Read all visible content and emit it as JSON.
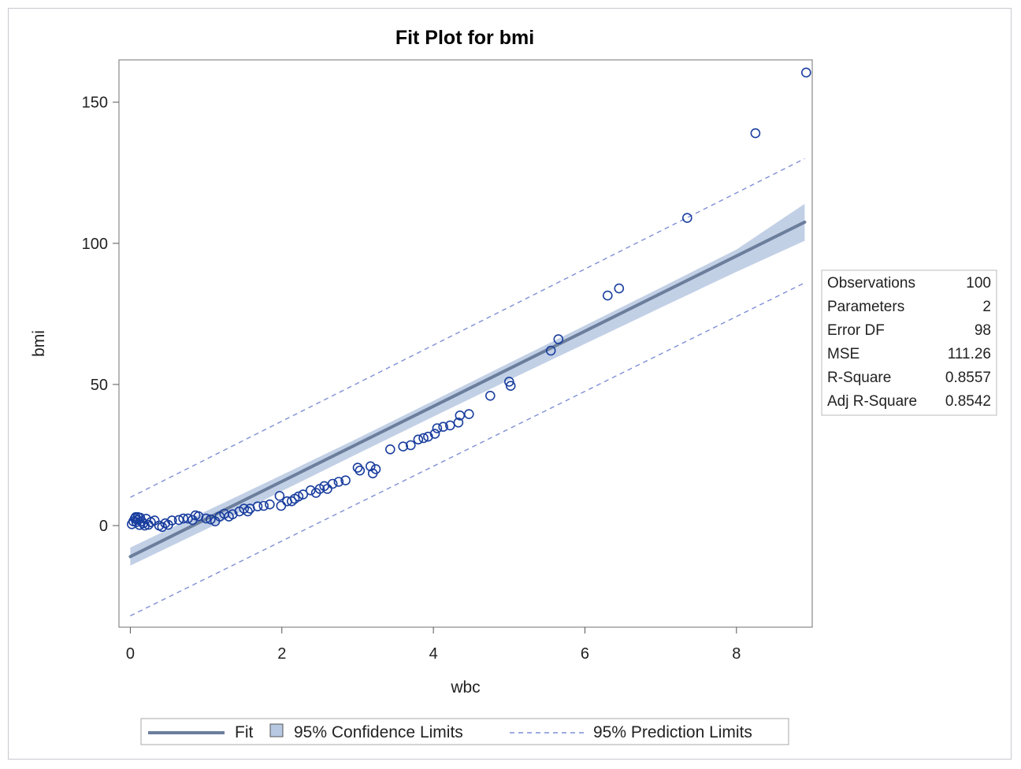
{
  "chart_data": {
    "type": "scatter",
    "title": "Fit Plot for bmi",
    "xlabel": "wbc",
    "ylabel": "bmi",
    "xlim": [
      -0.15,
      9.0
    ],
    "ylim": [
      -36,
      165
    ],
    "xticks": [
      0,
      2,
      4,
      6,
      8
    ],
    "yticks": [
      0,
      50,
      100,
      150
    ],
    "fit": {
      "x": [
        0,
        8.9
      ],
      "y": [
        -11,
        107.5
      ]
    },
    "confidence_limits": {
      "x": [
        0,
        1,
        2,
        3,
        4,
        5,
        6,
        7,
        8,
        8.9
      ],
      "lower": [
        -14.2,
        -1.3,
        12.2,
        25.5,
        38.6,
        51.6,
        64.4,
        77.2,
        89.9,
        100.9
      ],
      "upper": [
        -7.8,
        5.1,
        17.9,
        30.9,
        44.2,
        57.6,
        70.9,
        84.3,
        97.8,
        114.0
      ]
    },
    "prediction_limits": {
      "x": [
        0,
        8.9
      ],
      "lower": [
        -32,
        86
      ],
      "upper": [
        10,
        130
      ]
    },
    "points": [
      [
        0.02,
        0.5
      ],
      [
        0.04,
        1.5
      ],
      [
        0.06,
        2.5
      ],
      [
        0.07,
        3.0
      ],
      [
        0.08,
        1.2
      ],
      [
        0.09,
        2.0
      ],
      [
        0.1,
        3.0
      ],
      [
        0.12,
        0.2
      ],
      [
        0.13,
        2.8
      ],
      [
        0.15,
        1.5
      ],
      [
        0.17,
        0.8
      ],
      [
        0.19,
        0.0
      ],
      [
        0.21,
        2.4
      ],
      [
        0.24,
        0.3
      ],
      [
        0.27,
        1.2
      ],
      [
        0.32,
        1.8
      ],
      [
        0.38,
        0.0
      ],
      [
        0.42,
        -0.5
      ],
      [
        0.46,
        0.8
      ],
      [
        0.5,
        0.3
      ],
      [
        0.55,
        1.8
      ],
      [
        0.64,
        2.0
      ],
      [
        0.7,
        2.5
      ],
      [
        0.76,
        2.5
      ],
      [
        0.82,
        2.0
      ],
      [
        0.86,
        3.6
      ],
      [
        0.9,
        3.3
      ],
      [
        1.0,
        2.5
      ],
      [
        1.06,
        2.2
      ],
      [
        1.12,
        1.5
      ],
      [
        1.18,
        3.2
      ],
      [
        1.24,
        4.2
      ],
      [
        1.3,
        3.2
      ],
      [
        1.35,
        4.0
      ],
      [
        1.44,
        5.0
      ],
      [
        1.5,
        6.0
      ],
      [
        1.55,
        5.0
      ],
      [
        1.58,
        6.0
      ],
      [
        1.68,
        6.8
      ],
      [
        1.76,
        7.0
      ],
      [
        1.84,
        7.5
      ],
      [
        1.97,
        10.5
      ],
      [
        1.99,
        7.0
      ],
      [
        2.07,
        8.6
      ],
      [
        2.13,
        8.6
      ],
      [
        2.17,
        9.5
      ],
      [
        2.22,
        10.3
      ],
      [
        2.28,
        11.0
      ],
      [
        2.38,
        12.5
      ],
      [
        2.45,
        11.6
      ],
      [
        2.5,
        13.0
      ],
      [
        2.56,
        14.0
      ],
      [
        2.6,
        13.0
      ],
      [
        2.67,
        14.8
      ],
      [
        2.75,
        15.5
      ],
      [
        2.84,
        16.0
      ],
      [
        3.0,
        20.5
      ],
      [
        3.03,
        19.5
      ],
      [
        3.17,
        21.0
      ],
      [
        3.2,
        18.5
      ],
      [
        3.24,
        20.0
      ],
      [
        3.43,
        27.0
      ],
      [
        3.6,
        28.0
      ],
      [
        3.7,
        28.5
      ],
      [
        3.8,
        30.5
      ],
      [
        3.87,
        31.0
      ],
      [
        3.93,
        31.5
      ],
      [
        4.02,
        32.5
      ],
      [
        4.05,
        34.5
      ],
      [
        4.13,
        35.0
      ],
      [
        4.22,
        35.5
      ],
      [
        4.33,
        36.5
      ],
      [
        4.35,
        39.0
      ],
      [
        4.47,
        39.5
      ],
      [
        4.75,
        46.0
      ],
      [
        5.0,
        51.0
      ],
      [
        5.02,
        49.5
      ],
      [
        5.55,
        62.0
      ],
      [
        5.65,
        66.0
      ],
      [
        6.3,
        81.5
      ],
      [
        6.45,
        84.0
      ],
      [
        7.35,
        109.0
      ],
      [
        8.25,
        139.0
      ],
      [
        8.92,
        160.5
      ]
    ],
    "stats": [
      {
        "label": "Observations",
        "value": "100"
      },
      {
        "label": "Parameters",
        "value": "2"
      },
      {
        "label": "Error DF",
        "value": "98"
      },
      {
        "label": "MSE",
        "value": "111.26"
      },
      {
        "label": "R-Square",
        "value": "0.8557"
      },
      {
        "label": "Adj R-Square",
        "value": "0.8542"
      }
    ],
    "legend": {
      "fit": "Fit",
      "confidence": "95% Confidence Limits",
      "prediction": "95% Prediction Limits"
    },
    "colors": {
      "fit_line": "#6b7e9c",
      "band": "#b7c8e2",
      "points": "#1a3e9e",
      "prediction": "#7f8fd6"
    }
  }
}
